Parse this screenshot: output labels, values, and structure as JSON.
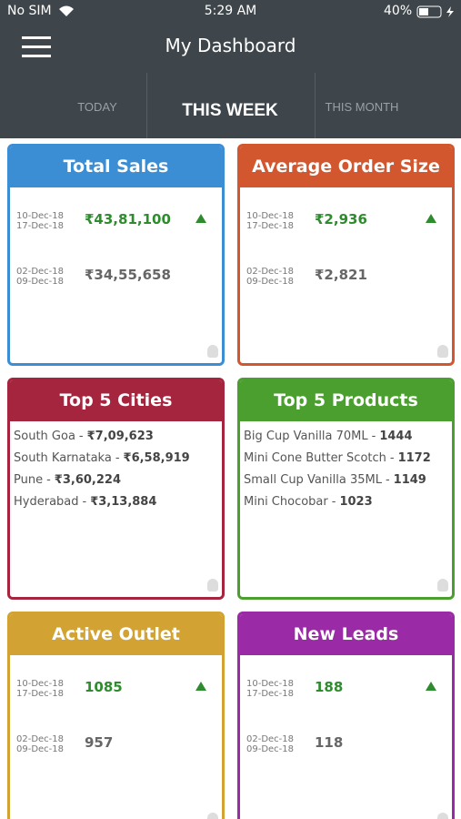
{
  "status_bar": {
    "carrier": "No SIM",
    "time": "5:29 AM",
    "battery": "40%"
  },
  "header": {
    "title": "My Dashboard"
  },
  "tabs": [
    "TODAY",
    "THIS WEEK",
    "THIS MONTH"
  ],
  "cards": [
    {
      "title": "Total Sales",
      "color": "#3b8dd4",
      "rows": [
        {
          "date_from": "10-Dec-18",
          "date_to": "17-Dec-18",
          "value": "₹43,81,100"
        },
        {
          "date_from": "02-Dec-18",
          "date_to": "09-Dec-18",
          "value": "₹34,55,658"
        }
      ]
    },
    {
      "title": "Average Order Size",
      "color": "#d2572f",
      "rows": [
        {
          "date_from": "10-Dec-18",
          "date_to": "17-Dec-18",
          "value": "₹2,936"
        },
        {
          "date_from": "02-Dec-18",
          "date_to": "09-Dec-18",
          "value": "₹2,821"
        }
      ]
    },
    {
      "title": "Top 5 Cities",
      "color": "#a5253f",
      "separator": "-",
      "items": [
        {
          "name": "South Goa",
          "value": "₹7,09,623"
        },
        {
          "name": "South Karnataka",
          "value": "₹6,58,919"
        },
        {
          "name": "Pune",
          "value": "₹3,60,224"
        },
        {
          "name": "Hyderabad",
          "value": "₹3,13,884"
        }
      ]
    },
    {
      "title": "Top 5 Products",
      "color": "#4b9f2f",
      "separator": "-",
      "items": [
        {
          "name": "Big Cup Vanilla 70ML",
          "value": "1444"
        },
        {
          "name": "Mini Cone Butter Scotch",
          "value": "1172"
        },
        {
          "name": "Small Cup Vanilla 35ML",
          "value": "1149"
        },
        {
          "name": "Mini Chocobar",
          "value": "1023"
        }
      ]
    },
    {
      "title": "Active Outlet",
      "color": "#d2a332",
      "rows": [
        {
          "date_from": "10-Dec-18",
          "date_to": "17-Dec-18",
          "value": "1085"
        },
        {
          "date_from": "02-Dec-18",
          "date_to": "09-Dec-18",
          "value": "957"
        }
      ]
    },
    {
      "title": "New Leads",
      "color": "#9b2aa6",
      "rows": [
        {
          "date_from": "10-Dec-18",
          "date_to": "17-Dec-18",
          "value": "188"
        },
        {
          "date_from": "02-Dec-18",
          "date_to": "09-Dec-18",
          "value": "118"
        }
      ]
    }
  ]
}
